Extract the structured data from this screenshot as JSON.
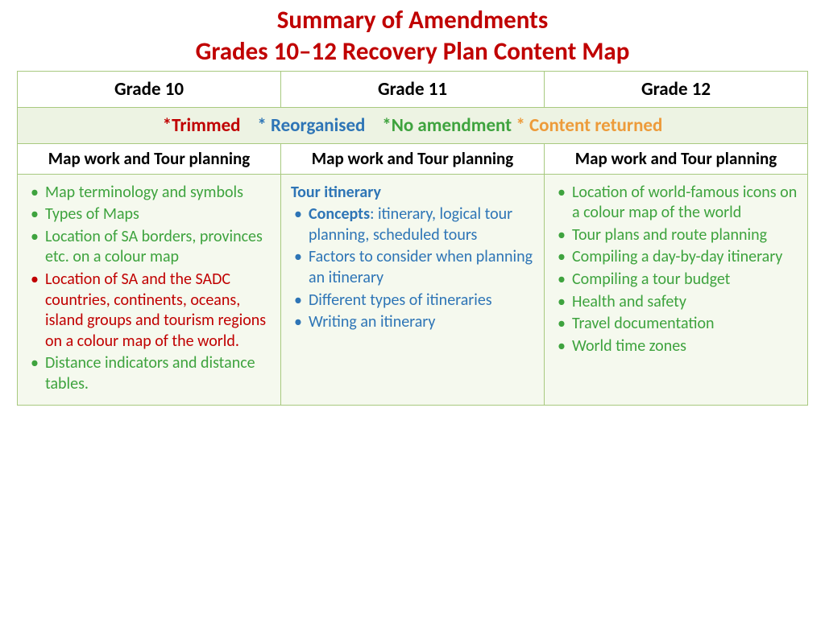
{
  "title_line1": "Summary of Amendments",
  "title_line2": "Grades 10–12 Recovery Plan Content Map",
  "colors": {
    "title": "#c00000",
    "trimmed": "#c00000",
    "reorganised": "#2e75b6",
    "no_amendment": "#3ea33e",
    "content_returned": "#ed9b3a",
    "border": "#a8c97f",
    "legend_bg": "#edf3e3",
    "content_bg": "#f5f9ee"
  },
  "headers": {
    "g10": "Grade 10",
    "g11": "Grade 11",
    "g12": "Grade 12"
  },
  "legend": {
    "trimmed": "Trimmed",
    "reorganised": "Reorganised",
    "no_amendment": "No amendment",
    "content_returned": "Content returned"
  },
  "subheaders": {
    "g10": "Map work and Tour planning",
    "g11": "Map work and Tour planning",
    "g12": "Map work and Tour planning"
  },
  "g10_items": [
    {
      "text": "Map terminology and symbols",
      "cls": "c-noamend"
    },
    {
      "text": "Types of Maps",
      "cls": "c-noamend"
    },
    {
      "text": "Location of SA borders, provinces etc. on a colour map",
      "cls": "c-noamend"
    },
    {
      "text": "Location of SA and the SADC countries, continents, oceans, island groups and tourism regions on a colour map of the world.",
      "cls": "c-trimmed"
    },
    {
      "text": "Distance indicators and distance tables.",
      "cls": "c-noamend"
    }
  ],
  "g11_lead": "Tour itinerary",
  "g11_items": [
    {
      "bold": "Concepts",
      "rest": ": itinerary, logical tour planning, scheduled tours",
      "cls": "c-reorg"
    },
    {
      "text": "Factors to consider when planning an itinerary",
      "cls": "c-reorg"
    },
    {
      "text": "Different types of itineraries",
      "cls": "c-reorg"
    },
    {
      "text": "Writing an itinerary",
      "cls": "c-reorg"
    }
  ],
  "g12_items": [
    {
      "text": "Location of world-famous icons on a colour map of the world",
      "cls": "c-noamend"
    },
    {
      "text": "Tour plans and route planning",
      "cls": "c-noamend"
    },
    {
      "text": "Compiling a day-by-day itinerary",
      "cls": "c-noamend"
    },
    {
      "text": "Compiling a tour budget",
      "cls": "c-noamend"
    },
    {
      "text": "Health and safety",
      "cls": "c-noamend"
    },
    {
      "text": "Travel documentation",
      "cls": "c-noamend"
    },
    {
      "text": "World time zones",
      "cls": "c-noamend"
    }
  ]
}
